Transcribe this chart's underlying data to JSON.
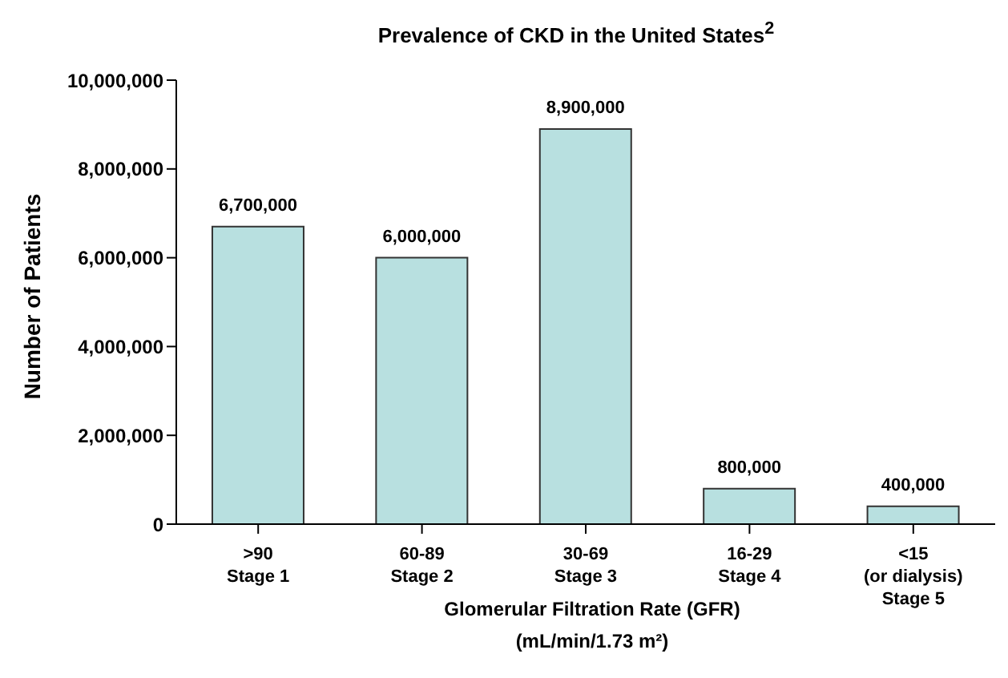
{
  "chart_data": {
    "type": "bar",
    "title": "Prevalence of CKD in the United States$^{2}$",
    "xlabel": "Glomerular Filtration Rate (GFR)\n(mL/min/1.73 m²)",
    "ylabel": "Number of Patients",
    "categories": [
      ">90\nStage 1",
      "60-89\nStage 2",
      "30-69\nStage 3",
      "16-29\nStage 4",
      "<15\n(or dialysis)\nStage 5"
    ],
    "values": [
      6700000,
      6000000,
      8900000,
      800000,
      400000
    ],
    "value_labels": [
      "6,700,000",
      "6,000,000",
      "8,900,000",
      "800,000",
      "400,000"
    ],
    "color": "#b8e0e0",
    "ylim": [
      0,
      10000000
    ],
    "yticks": [
      {
        "value": 0,
        "label": "0"
      },
      {
        "value": 2000000,
        "label": "2,000,000"
      },
      {
        "value": 4000000,
        "label": "4,000,000"
      },
      {
        "value": 6000000,
        "label": "6,000,000"
      },
      {
        "value": 8000000,
        "label": "8,000,000"
      },
      {
        "value": 10000000,
        "label": "10,000,000"
      }
    ],
    "grid": false,
    "legend": false
  }
}
